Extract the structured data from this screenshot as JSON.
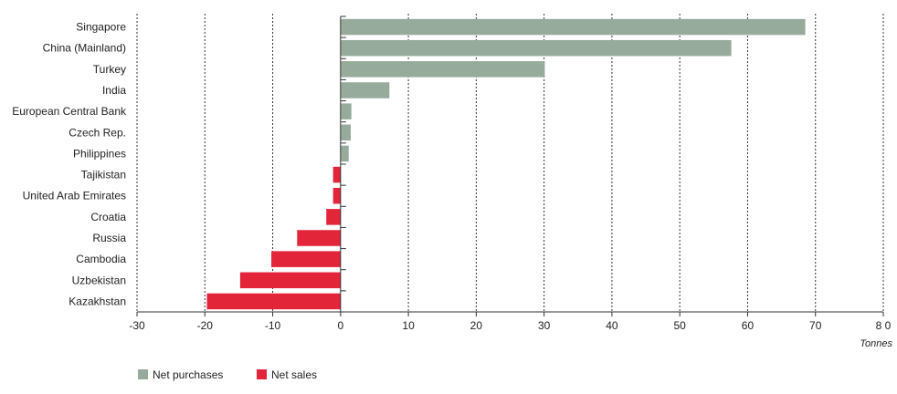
{
  "chart_data": {
    "type": "bar",
    "orientation": "horizontal",
    "categories": [
      "Singapore",
      "China (Mainland)",
      "Turkey",
      "India",
      "European Central Bank",
      "Czech Rep.",
      "Philippines",
      "Tajikistan",
      "United Arab Emirates",
      "Croatia",
      "Russia",
      "Cambodia",
      "Uzbekistan",
      "Kazakhstan"
    ],
    "values": [
      68.5,
      57.6,
      30.1,
      7.2,
      1.6,
      1.5,
      1.2,
      -1.1,
      -1.1,
      -2.1,
      -6.4,
      -10.2,
      -14.8,
      -19.7
    ],
    "x_range": [
      -30,
      80
    ],
    "x_ticks": [
      "-30",
      "-20",
      "-10",
      "0",
      "10",
      "20",
      "30",
      "40",
      "50",
      "60",
      "70",
      "8 0"
    ],
    "x_unit": "Tonnes",
    "grid": "vertical dotted",
    "legend_placement": "bottom-left",
    "legend": [
      {
        "name": "Net purchases",
        "color": "#97ab9c"
      },
      {
        "name": "Net sales",
        "color": "#e3253a"
      }
    ]
  }
}
